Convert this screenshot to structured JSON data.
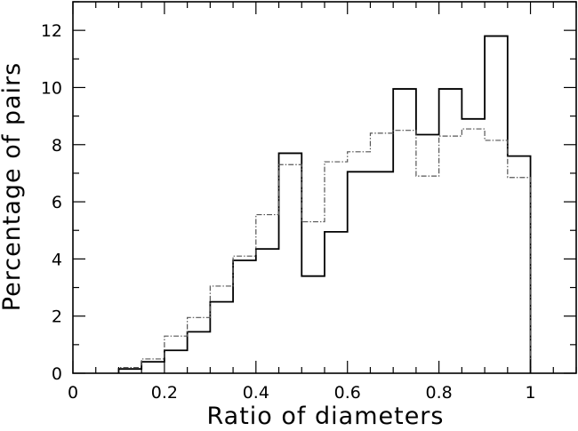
{
  "chart_data": {
    "type": "bar",
    "style": "step-histogram",
    "xlabel": "Ratio of diameters",
    "ylabel": "Percentage of pairs",
    "xlim": [
      0,
      1.1
    ],
    "ylim": [
      0,
      13
    ],
    "xticks": [
      0,
      0.2,
      0.4,
      0.6,
      0.8,
      1
    ],
    "xtick_labels": [
      "0",
      "0.2",
      "0.4",
      "0.6",
      "0.8",
      "1"
    ],
    "yticks": [
      0,
      2,
      4,
      6,
      8,
      10,
      12
    ],
    "ytick_labels": [
      "0",
      "2",
      "4",
      "6",
      "8",
      "10",
      "12"
    ],
    "x_minor_step": 0.05,
    "y_minor_step": 1,
    "grid": false,
    "bin_edges": [
      0.1,
      0.15,
      0.2,
      0.25,
      0.3,
      0.35,
      0.4,
      0.45,
      0.5,
      0.55,
      0.6,
      0.65,
      0.7,
      0.75,
      0.8,
      0.85,
      0.9,
      0.95,
      1.0
    ],
    "series": [
      {
        "line_style": "solid",
        "color": "#000000",
        "values": [
          0.15,
          0.4,
          0.8,
          1.45,
          2.5,
          3.95,
          4.35,
          7.7,
          3.4,
          4.95,
          7.05,
          7.05,
          9.95,
          8.35,
          9.95,
          8.9,
          11.8,
          7.6
        ]
      },
      {
        "line_style": "dash-dot",
        "color": "#555555",
        "values": [
          0.2,
          0.5,
          1.3,
          1.95,
          3.05,
          4.1,
          5.55,
          7.3,
          5.3,
          7.4,
          7.75,
          8.4,
          8.5,
          6.9,
          8.3,
          8.55,
          8.15,
          6.85
        ]
      }
    ]
  }
}
